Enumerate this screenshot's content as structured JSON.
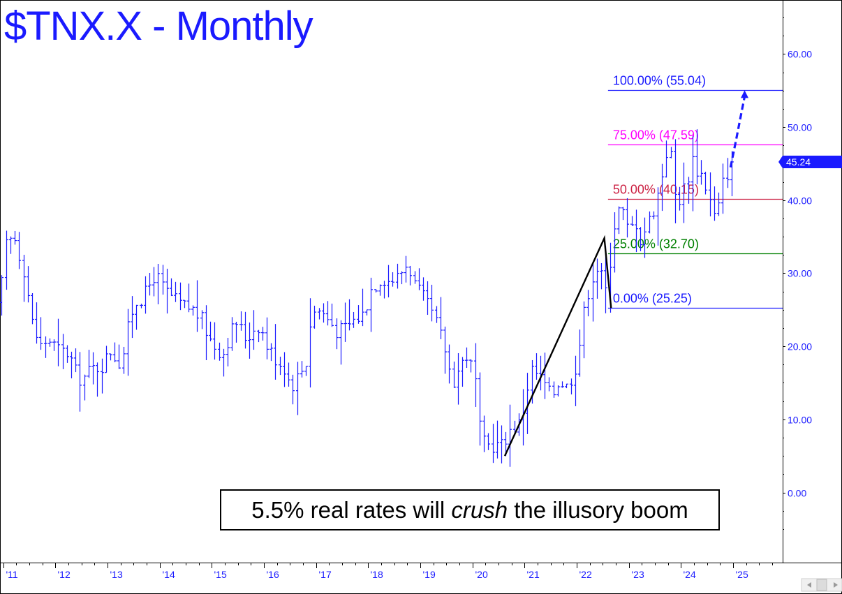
{
  "title": "$TNX.X - Monthly",
  "caption": {
    "before": "5.5% real rates will ",
    "emphasis": "crush",
    "after": " the illusory boom"
  },
  "last_price_label": "45.24",
  "colors": {
    "price_bars": "#1a1aff",
    "fib_100": "#1a1aff",
    "fib_75": "#ff00ff",
    "fib_50": "#cc2244",
    "fib_25": "#008000",
    "fib_0": "#1a1aff",
    "projection_arrow": "#1a1aff",
    "swing_lines": "#000000"
  },
  "chart_data": {
    "type": "ohlc",
    "title": "$TNX.X - Monthly",
    "x_tick_labels": [
      "'11",
      "'12",
      "'13",
      "'14",
      "'15",
      "'16",
      "'17",
      "'18",
      "'19",
      "'20",
      "'21",
      "'22",
      "'23",
      "'24",
      "'25"
    ],
    "x_range": [
      2010.95,
      2025.95
    ],
    "y_tick_labels": [
      "0.00",
      "10.00",
      "20.00",
      "30.00",
      "40.00",
      "50.00",
      "60.00"
    ],
    "y_ticks": [
      0,
      10,
      20,
      30,
      40,
      50,
      60
    ],
    "y_range": [
      -9.6,
      67.4
    ],
    "last_value": 45.24,
    "price_path": [
      [
        2010.97,
        26
      ],
      [
        2011.1,
        34
      ],
      [
        2011.25,
        35
      ],
      [
        2011.45,
        30
      ],
      [
        2011.6,
        23
      ],
      [
        2011.75,
        20
      ],
      [
        2011.9,
        21
      ],
      [
        2012.1,
        19.5
      ],
      [
        2012.3,
        19
      ],
      [
        2012.45,
        16
      ],
      [
        2012.55,
        15.5
      ],
      [
        2012.75,
        17
      ],
      [
        2012.95,
        17.5
      ],
      [
        2013.1,
        19.5
      ],
      [
        2013.3,
        17.5
      ],
      [
        2013.4,
        21.5
      ],
      [
        2013.55,
        26
      ],
      [
        2013.75,
        27
      ],
      [
        2013.95,
        30
      ],
      [
        2014.1,
        28
      ],
      [
        2014.3,
        26.5
      ],
      [
        2014.5,
        25.5
      ],
      [
        2014.7,
        25
      ],
      [
        2014.85,
        23.5
      ],
      [
        2015.0,
        21
      ],
      [
        2015.1,
        20
      ],
      [
        2015.25,
        19
      ],
      [
        2015.35,
        21
      ],
      [
        2015.5,
        23.5
      ],
      [
        2015.7,
        21
      ],
      [
        2015.85,
        22.5
      ],
      [
        2015.95,
        23
      ],
      [
        2016.1,
        20
      ],
      [
        2016.3,
        18
      ],
      [
        2016.45,
        17
      ],
      [
        2016.55,
        14.5
      ],
      [
        2016.7,
        16
      ],
      [
        2016.85,
        18
      ],
      [
        2016.95,
        24.5
      ],
      [
        2017.1,
        25
      ],
      [
        2017.3,
        23.5
      ],
      [
        2017.45,
        22
      ],
      [
        2017.6,
        22.5
      ],
      [
        2017.75,
        23.5
      ],
      [
        2017.95,
        24.5
      ],
      [
        2018.1,
        28
      ],
      [
        2018.3,
        29.5
      ],
      [
        2018.45,
        29
      ],
      [
        2018.6,
        29.5
      ],
      [
        2018.8,
        31.5
      ],
      [
        2018.95,
        28
      ],
      [
        2019.1,
        26.5
      ],
      [
        2019.3,
        24
      ],
      [
        2019.5,
        20
      ],
      [
        2019.65,
        15
      ],
      [
        2019.85,
        18
      ],
      [
        2019.95,
        19
      ],
      [
        2020.1,
        15
      ],
      [
        2020.2,
        7
      ],
      [
        2020.3,
        6.5
      ],
      [
        2020.45,
        6.5
      ],
      [
        2020.6,
        6.5
      ],
      [
        2020.75,
        8.5
      ],
      [
        2020.95,
        9.5
      ],
      [
        2021.05,
        12.5
      ],
      [
        2021.15,
        17
      ],
      [
        2021.3,
        16
      ],
      [
        2021.45,
        14.5
      ],
      [
        2021.55,
        13
      ],
      [
        2021.7,
        15.5
      ],
      [
        2021.85,
        14.5
      ],
      [
        2021.95,
        16
      ],
      [
        2022.05,
        18
      ],
      [
        2022.15,
        23.5
      ],
      [
        2022.3,
        29
      ],
      [
        2022.45,
        31
      ],
      [
        2022.6,
        27.5
      ],
      [
        2022.7,
        33
      ],
      [
        2022.8,
        39
      ],
      [
        2022.95,
        38
      ],
      [
        2023.05,
        35
      ],
      [
        2023.15,
        38
      ],
      [
        2023.25,
        34.5
      ],
      [
        2023.35,
        36
      ],
      [
        2023.5,
        38.5
      ],
      [
        2023.6,
        41
      ],
      [
        2023.75,
        46
      ],
      [
        2023.8,
        48.5
      ],
      [
        2023.9,
        43
      ],
      [
        2023.95,
        39
      ],
      [
        2024.05,
        41
      ],
      [
        2024.15,
        42.5
      ],
      [
        2024.25,
        46
      ],
      [
        2024.35,
        44
      ],
      [
        2024.45,
        43.5
      ],
      [
        2024.55,
        41
      ],
      [
        2024.65,
        38.5
      ],
      [
        2024.72,
        37
      ],
      [
        2024.82,
        42
      ],
      [
        2024.92,
        43.5
      ],
      [
        2024.97,
        45.24
      ]
    ],
    "fib_levels": [
      {
        "label": "100.00% (55.04)",
        "pct": 100.0,
        "value": 55.04,
        "color": "#1a1aff"
      },
      {
        "label": "75.00% (47.59)",
        "pct": 75.0,
        "value": 47.59,
        "color": "#ff00ff"
      },
      {
        "label": "50.00% (40.15)",
        "pct": 50.0,
        "value": 40.15,
        "color": "#cc2244"
      },
      {
        "label": "25.00% (32.70)",
        "pct": 25.0,
        "value": 32.7,
        "color": "#008000"
      },
      {
        "label": "0.00% (25.25)",
        "pct": 0.0,
        "value": 25.25,
        "color": "#1a1aff"
      }
    ],
    "fib_start_x": 2022.6,
    "swing_points": [
      [
        2020.62,
        5.0
      ],
      [
        2022.53,
        34.8
      ],
      [
        2022.66,
        25.25
      ]
    ],
    "projection": {
      "from": [
        2024.95,
        44.5
      ],
      "via": [
        2025.05,
        48.0
      ],
      "to": [
        2025.22,
        55.04
      ]
    }
  }
}
